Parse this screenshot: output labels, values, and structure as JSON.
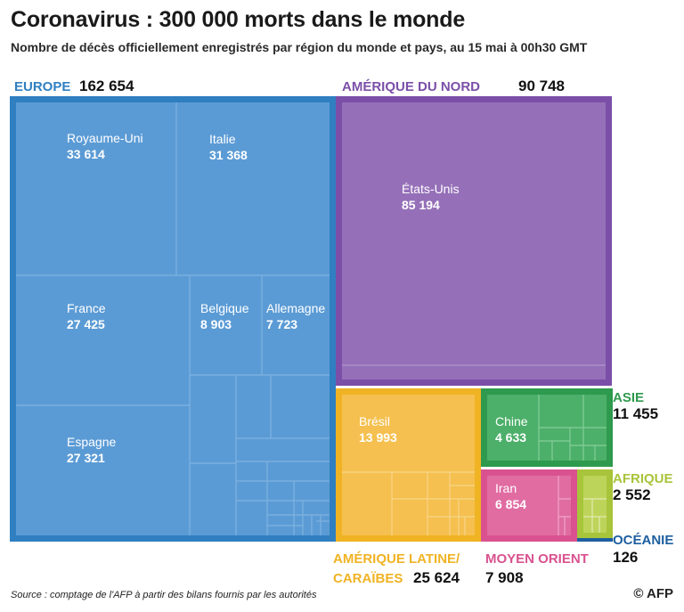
{
  "title": "Coronavirus : 300 000 morts dans le monde",
  "subtitle": "Nombre de décès officiellement enregistrés par région du monde et pays, au 15 mai à 00h30 GMT",
  "source": "Source : comptage de l'AFP à partir des bilans fournis par les autorités",
  "credit": "© AFP",
  "chart_data": {
    "type": "treemap",
    "title": "Coronavirus : 300 000 morts dans le monde",
    "unit": "décès",
    "regions": [
      {
        "name": "EUROPE",
        "value": "162 654",
        "color": "#2f7fc1",
        "fill": "#5b9bd5",
        "countries": [
          {
            "name": "Royaume-Uni",
            "value": "33 614"
          },
          {
            "name": "Italie",
            "value": "31 368"
          },
          {
            "name": "France",
            "value": "27 425"
          },
          {
            "name": "Espagne",
            "value": "27 321"
          },
          {
            "name": "Belgique",
            "value": "8 903"
          },
          {
            "name": "Allemagne",
            "value": "7 723"
          }
        ]
      },
      {
        "name": "AMÉRIQUE DU NORD",
        "value": "90 748",
        "color": "#7b4fa8",
        "fill": "#9570b8",
        "countries": [
          {
            "name": "États-Unis",
            "value": "85 194"
          }
        ]
      },
      {
        "name": "AMÉRIQUE LATINE/ CARAÏBES",
        "name_line1": "AMÉRIQUE LATINE/",
        "name_line2": "CARAÏBES",
        "value": "25 624",
        "color": "#f0b323",
        "fill": "#f5c04f",
        "countries": [
          {
            "name": "Brésil",
            "value": "13 993"
          }
        ]
      },
      {
        "name": "ASIE",
        "value": "11 455",
        "color": "#2e9a4e",
        "fill": "#4caf6a",
        "countries": [
          {
            "name": "Chine",
            "value": "4 633"
          }
        ]
      },
      {
        "name": "MOYEN ORIENT",
        "value": "7 908",
        "color": "#d9528f",
        "fill": "#e06ca2",
        "countries": [
          {
            "name": "Iran",
            "value": "6 854"
          }
        ]
      },
      {
        "name": "AFRIQUE",
        "value": "2 552",
        "color": "#a8c43a",
        "fill": "#bdd45a",
        "countries": []
      },
      {
        "name": "OCÉANIE",
        "value": "126",
        "color": "#1e5fa0",
        "fill": "#1e5fa0",
        "countries": []
      }
    ]
  }
}
